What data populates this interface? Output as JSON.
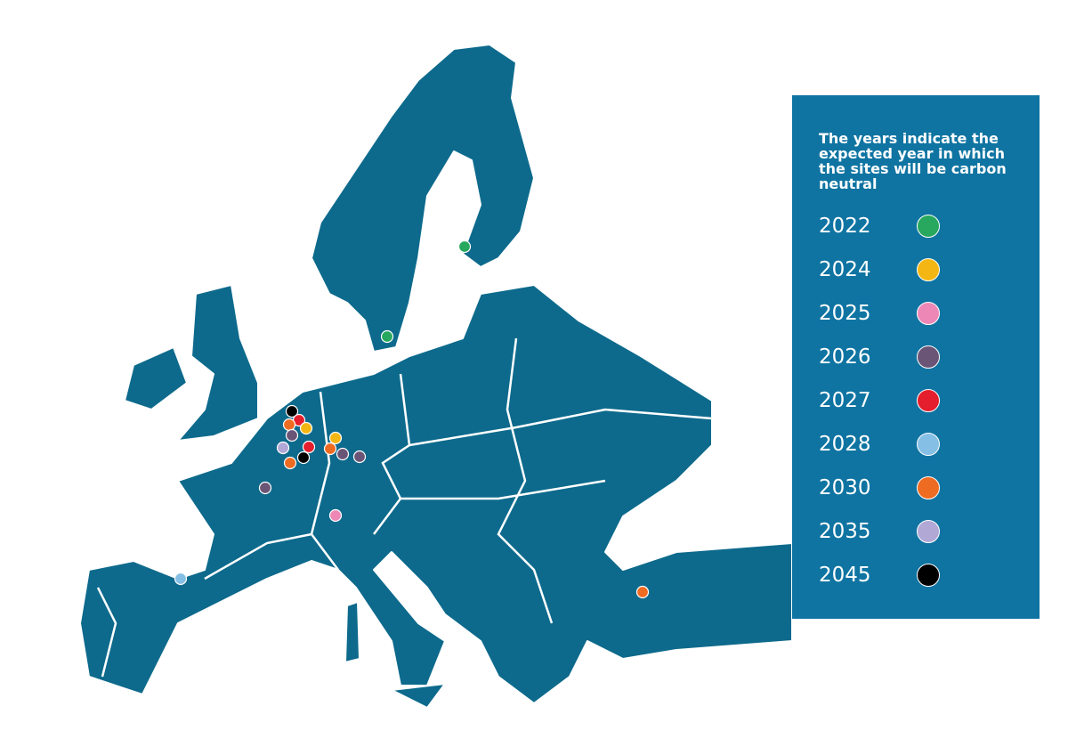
{
  "legend": {
    "title": "The years indicate the expected year in which the sites will be carbon neutral",
    "items": [
      {
        "label": "2022",
        "color": "#27a85e"
      },
      {
        "label": "2024",
        "color": "#f4b613"
      },
      {
        "label": "2025",
        "color": "#ec87b6"
      },
      {
        "label": "2026",
        "color": "#6a5576"
      },
      {
        "label": "2027",
        "color": "#e41e2c"
      },
      {
        "label": "2028",
        "color": "#86bfe5"
      },
      {
        "label": "2030",
        "color": "#ee6b22"
      },
      {
        "label": "2035",
        "color": "#b1a8d6"
      },
      {
        "label": "2045",
        "color": "#000000"
      }
    ]
  }
}
